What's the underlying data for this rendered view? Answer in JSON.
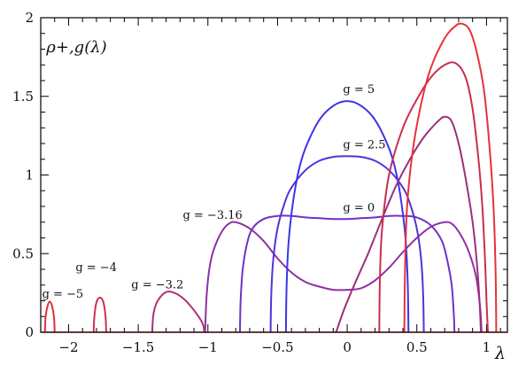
{
  "chart_data": {
    "type": "line",
    "title": "",
    "ylabel": "ρ+,g(λ)",
    "xlabel": "λ",
    "xlim": [
      -2.2,
      1.15
    ],
    "ylim": [
      0,
      2
    ],
    "xticks": [
      -2,
      -1.5,
      -1,
      -0.5,
      0,
      0.5,
      1
    ],
    "xtick_labels": [
      "−2",
      "−1.5",
      "−1",
      "−0.5",
      "0",
      "0.5",
      "1"
    ],
    "yticks": [
      0,
      0.5,
      1,
      1.5,
      2
    ],
    "ytick_labels": [
      "0",
      "0.5",
      "1",
      "1.5",
      "2"
    ],
    "grid": false,
    "legend": "none",
    "series": [
      {
        "name": "g = −5",
        "color": "#e0303a",
        "points": [
          [
            -2.17,
            0
          ],
          [
            -2.165,
            0.1
          ],
          [
            -2.15,
            0.17
          ],
          [
            -2.135,
            0.195
          ],
          [
            -2.12,
            0.17
          ],
          [
            -2.105,
            0.1
          ],
          [
            -2.1,
            0
          ]
        ]
      },
      {
        "name": "g = −4",
        "color": "#d02e52",
        "points": [
          [
            -1.82,
            0
          ],
          [
            -1.815,
            0.1
          ],
          [
            -1.8,
            0.19
          ],
          [
            -1.775,
            0.22
          ],
          [
            -1.75,
            0.19
          ],
          [
            -1.735,
            0.1
          ],
          [
            -1.73,
            0
          ]
        ]
      },
      {
        "name": "g = −3.2",
        "color": "#b1307a",
        "points": [
          [
            -1.4,
            0
          ],
          [
            -1.39,
            0.12
          ],
          [
            -1.36,
            0.2
          ],
          [
            -1.3,
            0.255
          ],
          [
            -1.24,
            0.25
          ],
          [
            -1.17,
            0.21
          ],
          [
            -1.1,
            0.14
          ],
          [
            -1.04,
            0.06
          ],
          [
            -1.025,
            0
          ]
        ]
      },
      {
        "name": "g = −3.16",
        "color": "#8e30a4",
        "points": [
          [
            -1.02,
            0
          ],
          [
            -1.01,
            0.22
          ],
          [
            -0.99,
            0.4
          ],
          [
            -0.96,
            0.52
          ],
          [
            -0.9,
            0.64
          ],
          [
            -0.85,
            0.69
          ],
          [
            -0.8,
            0.7
          ],
          [
            -0.7,
            0.66
          ],
          [
            -0.6,
            0.58
          ],
          [
            -0.5,
            0.47
          ],
          [
            -0.4,
            0.38
          ],
          [
            -0.3,
            0.32
          ],
          [
            -0.2,
            0.29
          ],
          [
            -0.1,
            0.27
          ],
          [
            0,
            0.27
          ],
          [
            0.1,
            0.28
          ],
          [
            0.2,
            0.33
          ],
          [
            0.3,
            0.41
          ],
          [
            0.4,
            0.51
          ],
          [
            0.5,
            0.6
          ],
          [
            0.6,
            0.67
          ],
          [
            0.7,
            0.7
          ],
          [
            0.75,
            0.69
          ],
          [
            0.8,
            0.64
          ],
          [
            0.86,
            0.54
          ],
          [
            0.9,
            0.44
          ],
          [
            0.93,
            0.33
          ],
          [
            0.955,
            0.15
          ],
          [
            0.965,
            0
          ]
        ]
      },
      {
        "name": "g = 0",
        "color": "#6f32c6",
        "points": [
          [
            -0.77,
            0
          ],
          [
            -0.765,
            0.2
          ],
          [
            -0.75,
            0.4
          ],
          [
            -0.72,
            0.56
          ],
          [
            -0.68,
            0.66
          ],
          [
            -0.6,
            0.72
          ],
          [
            -0.5,
            0.74
          ],
          [
            -0.4,
            0.74
          ],
          [
            -0.3,
            0.73
          ],
          [
            -0.2,
            0.725
          ],
          [
            -0.1,
            0.72
          ],
          [
            0,
            0.72
          ],
          [
            0.1,
            0.725
          ],
          [
            0.2,
            0.73
          ],
          [
            0.3,
            0.74
          ],
          [
            0.4,
            0.74
          ],
          [
            0.5,
            0.73
          ],
          [
            0.6,
            0.68
          ],
          [
            0.68,
            0.58
          ],
          [
            0.72,
            0.45
          ],
          [
            0.75,
            0.3
          ],
          [
            0.765,
            0.12
          ],
          [
            0.77,
            0
          ]
        ]
      },
      {
        "name": "g = 2.5",
        "color": "#5532d8",
        "points": [
          [
            -0.55,
            0
          ],
          [
            -0.545,
            0.25
          ],
          [
            -0.53,
            0.47
          ],
          [
            -0.5,
            0.66
          ],
          [
            -0.45,
            0.82
          ],
          [
            -0.4,
            0.92
          ],
          [
            -0.3,
            1.03
          ],
          [
            -0.2,
            1.09
          ],
          [
            -0.1,
            1.115
          ],
          [
            0,
            1.12
          ],
          [
            0.1,
            1.115
          ],
          [
            0.2,
            1.09
          ],
          [
            0.3,
            1.03
          ],
          [
            0.4,
            0.92
          ],
          [
            0.45,
            0.82
          ],
          [
            0.5,
            0.66
          ],
          [
            0.53,
            0.47
          ],
          [
            0.545,
            0.25
          ],
          [
            0.55,
            0
          ]
        ]
      },
      {
        "name": "g = 5",
        "color": "#3b35ea",
        "points": [
          [
            -0.44,
            0
          ],
          [
            -0.435,
            0.3
          ],
          [
            -0.42,
            0.58
          ],
          [
            -0.39,
            0.82
          ],
          [
            -0.35,
            1.02
          ],
          [
            -0.3,
            1.17
          ],
          [
            -0.2,
            1.35
          ],
          [
            -0.1,
            1.44
          ],
          [
            0,
            1.47
          ],
          [
            0.1,
            1.44
          ],
          [
            0.2,
            1.35
          ],
          [
            0.3,
            1.17
          ],
          [
            0.35,
            1.02
          ],
          [
            0.39,
            0.82
          ],
          [
            0.42,
            0.58
          ],
          [
            0.435,
            0.3
          ],
          [
            0.44,
            0
          ]
        ]
      },
      {
        "name": "",
        "color": "#9c2f7e",
        "points": [
          [
            -0.08,
            0
          ],
          [
            -0.02,
            0.15
          ],
          [
            0.05,
            0.3
          ],
          [
            0.15,
            0.5
          ],
          [
            0.25,
            0.72
          ],
          [
            0.35,
            0.93
          ],
          [
            0.45,
            1.1
          ],
          [
            0.55,
            1.24
          ],
          [
            0.65,
            1.34
          ],
          [
            0.7,
            1.37
          ],
          [
            0.75,
            1.34
          ],
          [
            0.8,
            1.2
          ],
          [
            0.85,
            0.98
          ],
          [
            0.9,
            0.7
          ],
          [
            0.93,
            0.45
          ],
          [
            0.95,
            0.2
          ],
          [
            0.96,
            0
          ]
        ]
      },
      {
        "name": "",
        "color": "#c82f4f",
        "points": [
          [
            0.23,
            0
          ],
          [
            0.235,
            0.35
          ],
          [
            0.25,
            0.65
          ],
          [
            0.3,
            1.0
          ],
          [
            0.4,
            1.3
          ],
          [
            0.5,
            1.48
          ],
          [
            0.6,
            1.62
          ],
          [
            0.7,
            1.7
          ],
          [
            0.78,
            1.71
          ],
          [
            0.85,
            1.62
          ],
          [
            0.9,
            1.42
          ],
          [
            0.94,
            1.12
          ],
          [
            0.97,
            0.8
          ],
          [
            0.99,
            0.45
          ],
          [
            1.0,
            0.2
          ],
          [
            1.01,
            0
          ]
        ]
      },
      {
        "name": "",
        "color": "#e6323b",
        "points": [
          [
            0.41,
            0
          ],
          [
            0.415,
            0.4
          ],
          [
            0.43,
            0.8
          ],
          [
            0.47,
            1.15
          ],
          [
            0.53,
            1.45
          ],
          [
            0.6,
            1.68
          ],
          [
            0.7,
            1.87
          ],
          [
            0.78,
            1.95
          ],
          [
            0.83,
            1.96
          ],
          [
            0.88,
            1.92
          ],
          [
            0.93,
            1.78
          ],
          [
            0.98,
            1.55
          ],
          [
            1.02,
            1.2
          ],
          [
            1.05,
            0.8
          ],
          [
            1.065,
            0.4
          ],
          [
            1.07,
            0
          ]
        ]
      }
    ],
    "annotations": [
      {
        "text": "ρ+,g(λ)",
        "x": -2.16,
        "y": 1.78
      },
      {
        "text": "g = 5",
        "x": -0.03,
        "y": 1.52
      },
      {
        "text": "g = 2.5",
        "x": -0.03,
        "y": 1.17
      },
      {
        "text": "g = 0",
        "x": -0.03,
        "y": 0.77
      },
      {
        "text": "g = −3.16",
        "x": -1.18,
        "y": 0.72
      },
      {
        "text": "g = −3.2",
        "x": -1.55,
        "y": 0.28
      },
      {
        "text": "g = −4",
        "x": -1.95,
        "y": 0.39
      },
      {
        "text": "g = −5",
        "x": -2.19,
        "y": 0.22
      }
    ]
  }
}
